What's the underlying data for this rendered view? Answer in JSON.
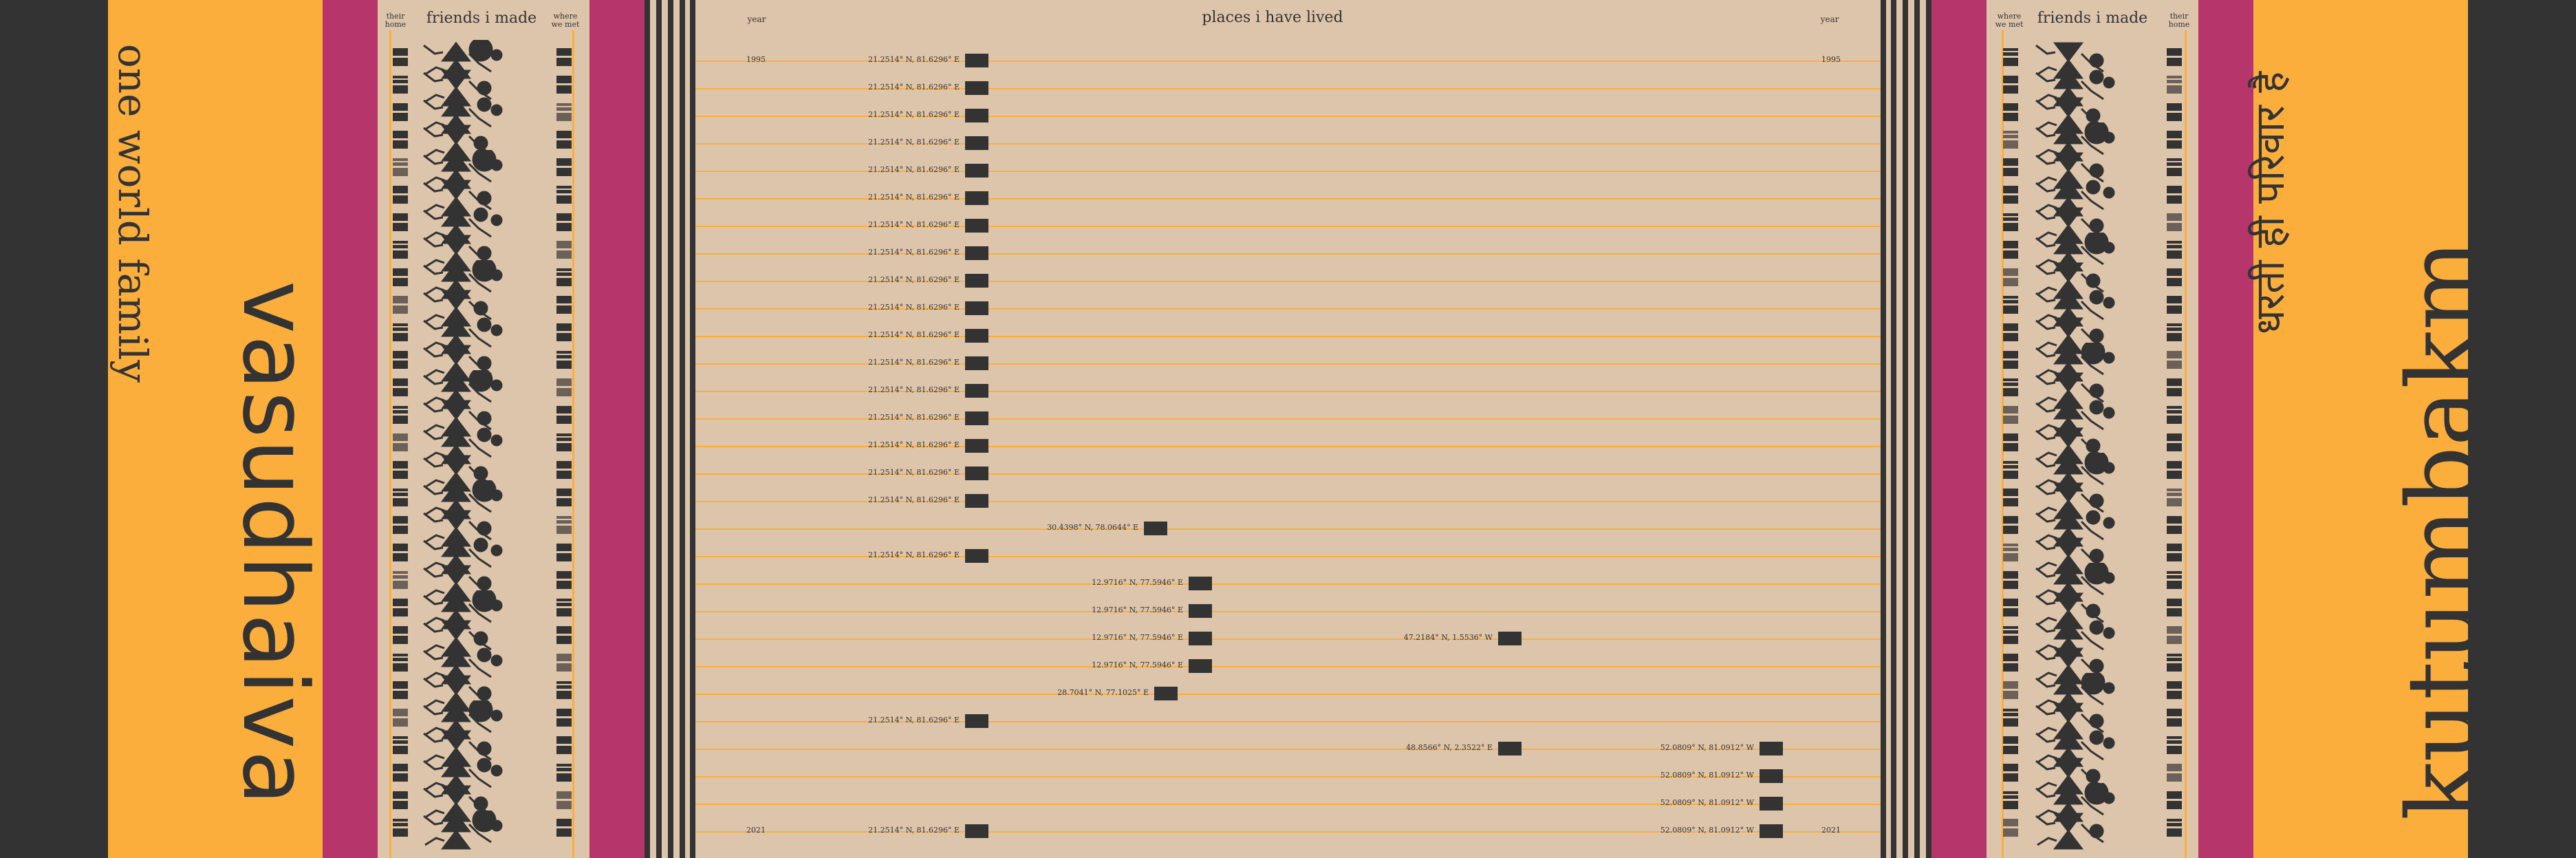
{
  "left_panel": {
    "subtitle": "one world family",
    "title": "vasudhaiva",
    "col_their_home": "their home",
    "col_friends": "friends i made",
    "col_where_we_met": "where we met"
  },
  "right_panel": {
    "subtitle": "धरती ही परिवार है",
    "title": "kutumbakm",
    "col_where_we_met": "where we met",
    "col_friends": "friends i made",
    "col_their_home": "their home"
  },
  "center": {
    "title": "places i have lived",
    "year_label_left": "year",
    "year_label_right": "year",
    "first_year": "1995",
    "last_year": "2021",
    "rows": [
      {
        "coord": "21.2514° N, 81.6296° E",
        "col": "a"
      },
      {
        "coord": "21.2514° N, 81.6296° E",
        "col": "a"
      },
      {
        "coord": "21.2514° N, 81.6296° E",
        "col": "a"
      },
      {
        "coord": "21.2514° N, 81.6296° E",
        "col": "a"
      },
      {
        "coord": "21.2514° N, 81.6296° E",
        "col": "a"
      },
      {
        "coord": "21.2514° N, 81.6296° E",
        "col": "a"
      },
      {
        "coord": "21.2514° N, 81.6296° E",
        "col": "a"
      },
      {
        "coord": "21.2514° N, 81.6296° E",
        "col": "a"
      },
      {
        "coord": "21.2514° N, 81.6296° E",
        "col": "a"
      },
      {
        "coord": "21.2514° N, 81.6296° E",
        "col": "a"
      },
      {
        "coord": "21.2514° N, 81.6296° E",
        "col": "a"
      },
      {
        "coord": "21.2514° N, 81.6296° E",
        "col": "a"
      },
      {
        "coord": "21.2514° N, 81.6296° E",
        "col": "a"
      },
      {
        "coord": "21.2514° N, 81.6296° E",
        "col": "a"
      },
      {
        "coord": "21.2514° N, 81.6296° E",
        "col": "a"
      },
      {
        "coord": "21.2514° N, 81.6296° E",
        "col": "a"
      },
      {
        "coord": "21.2514° N, 81.6296° E",
        "col": "a"
      },
      {
        "coord": "30.4398° N, 78.0644° E",
        "col": "b"
      },
      {
        "coord": "21.2514° N, 81.6296° E",
        "col": "a"
      },
      {
        "coord": "12.9716° N, 77.5946° E",
        "col": "c"
      },
      {
        "coord": "12.9716° N, 77.5946° E",
        "col": "c"
      },
      {
        "coord": "12.9716° N, 77.5946° E",
        "col": "c",
        "extra": "47.2184° N, 1.5536° W"
      },
      {
        "coord": "12.9716° N, 77.5946° E",
        "col": "c"
      },
      {
        "coord": "28.7041° N, 77.1025° E",
        "col": "b2"
      },
      {
        "coord": "21.2514° N, 81.6296° E",
        "col": "a"
      },
      {
        "coord": "48.8566° N, 2.3522° E",
        "col": "d",
        "extra": "52.0809° N, 81.0912° W"
      },
      {
        "coord": "52.0809° N, 81.0912° W",
        "col": "e"
      },
      {
        "coord": "52.0809° N, 81.0912° W",
        "col": "e"
      },
      {
        "coord": "21.2514° N, 81.6296° E",
        "col": "a",
        "extra": "52.0809° N, 81.0912° W"
      }
    ]
  },
  "colors": {
    "dark": "#333333",
    "orange": "#FBAE3B",
    "magenta": "#B6366B",
    "beige": "#DDC5AC"
  }
}
